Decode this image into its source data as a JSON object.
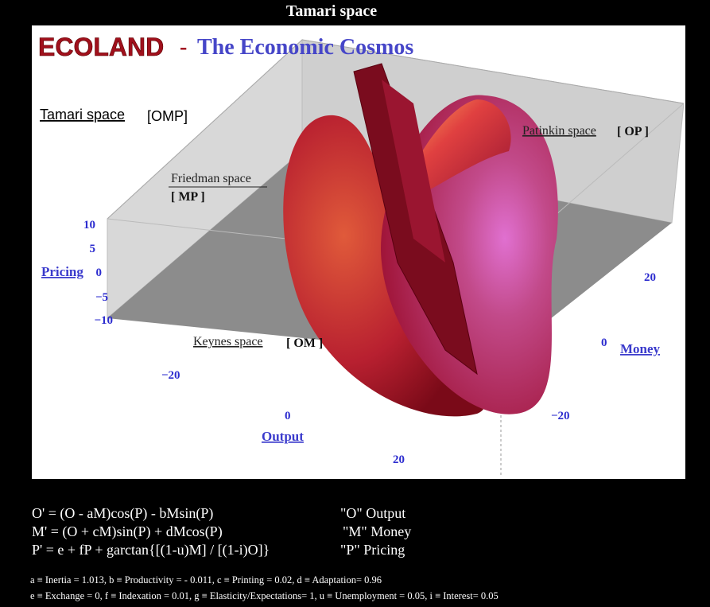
{
  "header": {
    "title": "Tamari space"
  },
  "logo": {
    "brand": "ECOLAND",
    "dash": "-",
    "subtitle": "The Economic Cosmos"
  },
  "plot": {
    "regions": [
      {
        "label": "Tamari space",
        "tag": "[OMP]"
      },
      {
        "label": "Friedman space",
        "tag": "[ MP ]"
      },
      {
        "label": "Patinkin space",
        "tag": "[ OP ]"
      },
      {
        "label": "Keynes space",
        "tag": "[ OM ]"
      }
    ],
    "axes": [
      {
        "label": "Pricing",
        "ticks": [
          "10",
          "5",
          "0",
          "−5",
          "−10"
        ]
      },
      {
        "label": "Money",
        "ticks": [
          "20",
          "0",
          "−20"
        ]
      },
      {
        "label": "Output",
        "ticks": [
          "−20",
          "0",
          "20"
        ]
      }
    ]
  },
  "equations": [
    {
      "formula": "O' = (O - aM)cos(P) - bMsin(P)",
      "meaning": "\"O\" Output"
    },
    {
      "formula": "M' = (O + cM)sin(P) + dMcos(P)",
      "meaning": "\"M\" Money"
    },
    {
      "formula": "P' = e + fP + garctan{[(1-u)M] / [(1-i)O]}",
      "meaning": "\"P\" Pricing"
    }
  ],
  "parameters": [
    "a ≡ Inertia = 1.013, b ≡ Productivity = - 0.011, c ≡ Printing = 0.02, d ≡ Adaptation= 0.96",
    "e ≡ Exchange = 0, f ≡ Indexation = 0.01, g ≡ Elasticity/Expectations= 1, u ≡ Unemployment = 0.05, i ≡ Interest= 0.05"
  ]
}
